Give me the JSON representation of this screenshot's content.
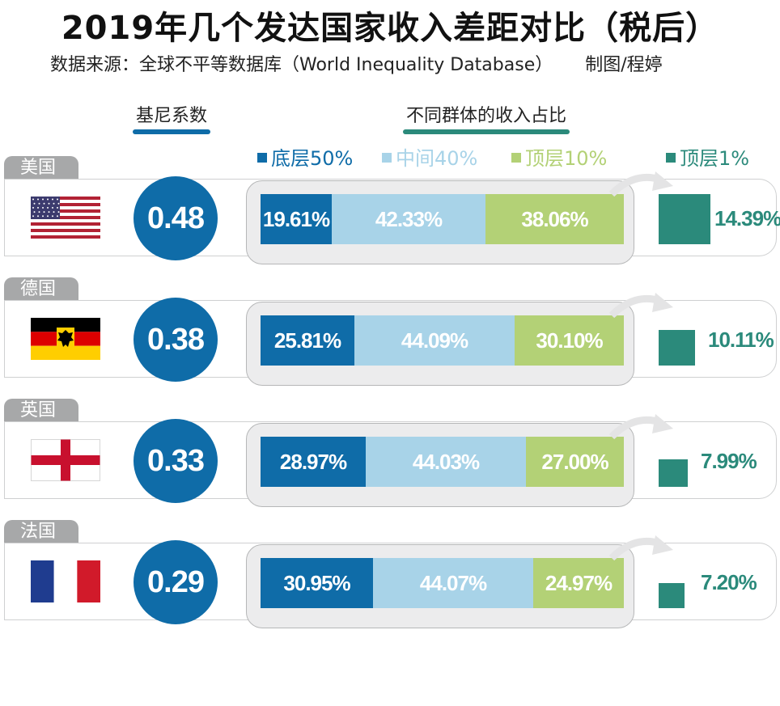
{
  "title": "2019年几个发达国家收入差距对比（税后）",
  "source_label": "数据来源：全球不平等数据库（World Inequality Database）",
  "author_label": "制图/程婷",
  "columns": {
    "gini_header": "基尼系数",
    "share_header": "不同群体的收入占比"
  },
  "colors": {
    "bottom50": "#0f6ca8",
    "middle40": "#a8d3e8",
    "top10": "#b3d176",
    "top1": "#2b8a7b",
    "tab": "#a7a8a9"
  },
  "chart_data": {
    "type": "bar",
    "title": "2019年几个发达国家收入差距对比（税后）",
    "subtitle": "数据来源：全球不平等数据库（World Inequality Database）",
    "stacked": true,
    "legend": [
      {
        "key": "bottom50",
        "label": "底层50%",
        "color": "#0f6ca8"
      },
      {
        "key": "middle40",
        "label": "中间40%",
        "color": "#a8d3e8"
      },
      {
        "key": "top10",
        "label": "顶层10%",
        "color": "#b3d176"
      },
      {
        "key": "top1",
        "label": "顶层1%",
        "color": "#2b8a7b"
      }
    ],
    "categories": [
      "美国",
      "德国",
      "英国",
      "法国"
    ],
    "gini": [
      0.48,
      0.38,
      0.33,
      0.29
    ],
    "series": [
      {
        "name": "底层50%",
        "values": [
          19.61,
          25.81,
          28.97,
          30.95
        ]
      },
      {
        "name": "中间40%",
        "values": [
          42.33,
          44.09,
          44.03,
          44.07
        ]
      },
      {
        "name": "顶层10%",
        "values": [
          38.06,
          30.1,
          27.0,
          24.97
        ]
      },
      {
        "name": "顶层1%",
        "values": [
          14.39,
          10.11,
          7.99,
          7.2
        ]
      }
    ],
    "countries": [
      {
        "name": "美国",
        "flag": "us-flag",
        "gini": "0.48",
        "bottom50": "19.61%",
        "middle40": "42.33%",
        "top10": "38.06%",
        "top1": "14.39%"
      },
      {
        "name": "德国",
        "flag": "germany-flag",
        "gini": "0.38",
        "bottom50": "25.81%",
        "middle40": "44.09%",
        "top10": "30.10%",
        "top1": "10.11%"
      },
      {
        "name": "英国",
        "flag": "england-flag",
        "gini": "0.33",
        "bottom50": "28.97%",
        "middle40": "44.03%",
        "top10": "27.00%",
        "top1": "7.99%"
      },
      {
        "name": "法国",
        "flag": "france-flag",
        "gini": "0.29",
        "bottom50": "30.95%",
        "middle40": "44.07%",
        "top10": "24.97%",
        "top1": "7.20%"
      }
    ]
  }
}
